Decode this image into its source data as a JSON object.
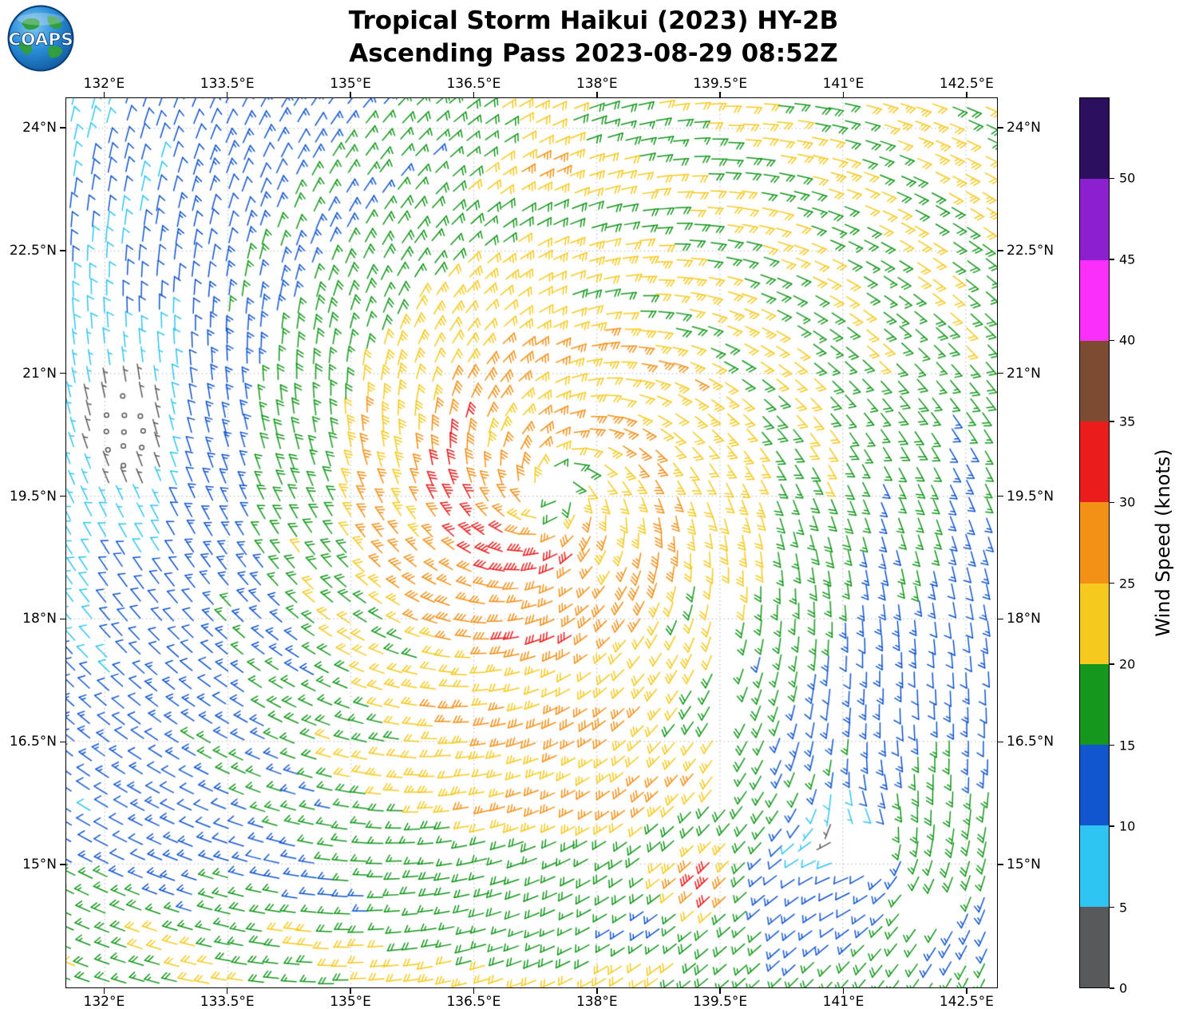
{
  "header": {
    "title_line1": "Tropical Storm Haikui (2023) HY-2B",
    "title_line2": "Ascending Pass 2023-08-29 08:52Z",
    "logo_text": "COAPS"
  },
  "chart_data": {
    "type": "wind_barb_map",
    "title": "Tropical Storm Haikui (2023) HY-2B Ascending Pass 2023-08-29 08:52Z",
    "grid": true,
    "grid_style": "dotted",
    "x_axis": {
      "label_suffix": "°E",
      "tick_values": [
        132,
        133.5,
        135,
        136.5,
        138,
        139.5,
        141,
        142.5
      ],
      "tick_labels": [
        "132°E",
        "133.5°E",
        "135°E",
        "136.5°E",
        "138°E",
        "139.5°E",
        "141°E",
        "142.5°E"
      ],
      "range": [
        131.53,
        142.88
      ]
    },
    "y_axis": {
      "label_suffix": "°N",
      "tick_values": [
        15,
        16.5,
        18,
        19.5,
        21,
        22.5,
        24
      ],
      "tick_labels": [
        "15°N",
        "16.5°N",
        "18°N",
        "19.5°N",
        "21°N",
        "22.5°N",
        "24°N"
      ],
      "range": [
        13.49,
        24.37
      ]
    },
    "colorbar": {
      "label": "Wind Speed (knots)",
      "tick_values": [
        0,
        5,
        10,
        15,
        20,
        25,
        30,
        35,
        40,
        45,
        50
      ],
      "tick_labels": [
        "0",
        "5",
        "10",
        "15",
        "20",
        "25",
        "30",
        "35",
        "40",
        "45",
        "50"
      ],
      "levels": [
        0,
        5,
        10,
        15,
        20,
        25,
        30,
        35,
        40,
        45,
        50,
        55
      ],
      "colors": [
        "#58595b",
        "#2fc5f2",
        "#1256cf",
        "#14971c",
        "#f6c91e",
        "#f39016",
        "#ea1c1c",
        "#7d4a32",
        "#fb2ffb",
        "#8c1fd0",
        "#2c0f5e"
      ]
    },
    "storm": {
      "name": "Haikui",
      "center_lon": 137.5,
      "center_lat": 19.55,
      "max_wind_knots": 34,
      "radius_max_wind_deg": 1.1,
      "rotation": "counterclockwise"
    },
    "secondary_vortex": {
      "center_lon": 141.35,
      "center_lat": 15.2
    },
    "calm_region": {
      "center_lon": 132.25,
      "center_lat": 20.3
    },
    "high_wind_patch_south": {
      "center_lon": 139.35,
      "center_lat": 14.75,
      "max_knots": 32
    },
    "barb_grid": {
      "lon_step_deg": 0.21,
      "lat_step_deg": 0.21
    },
    "data_gaps": [
      {
        "lon": [
          139.5,
          139.78
        ],
        "lat": [
          15.85,
          18.45
        ]
      },
      {
        "lon": [
          140.95,
          141.65
        ],
        "lat": [
          14.9,
          15.5
        ]
      },
      {
        "lon": [
          137.25,
          137.55
        ],
        "lat": [
          19.45,
          19.7
        ]
      },
      {
        "lon": [
          141.9,
          142.45
        ],
        "lat": [
          14.3,
          14.75
        ]
      }
    ]
  }
}
